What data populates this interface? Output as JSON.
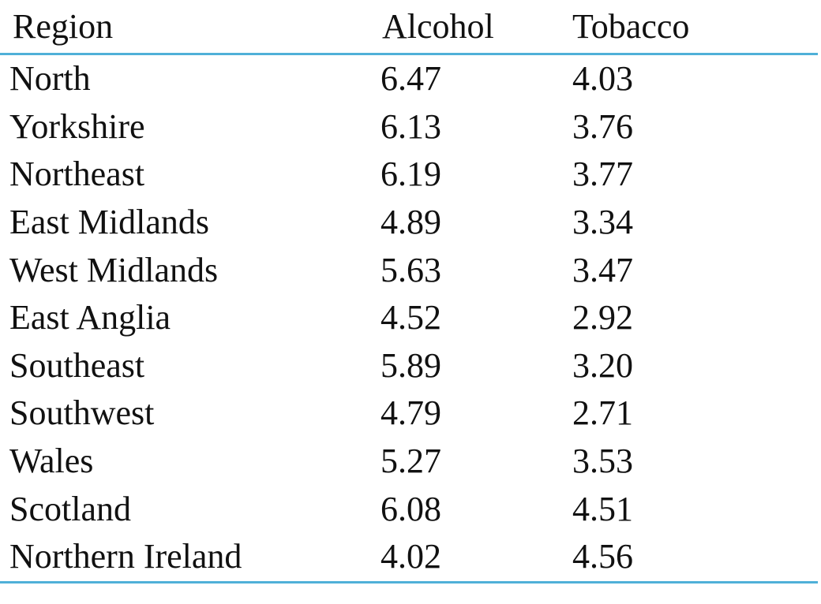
{
  "table": {
    "headers": [
      "Region",
      "Alcohol",
      "Tobacco"
    ],
    "rows": [
      [
        "North",
        "6.47",
        "4.03"
      ],
      [
        "Yorkshire",
        "6.13",
        "3.76"
      ],
      [
        "Northeast",
        "6.19",
        "3.77"
      ],
      [
        "East Midlands",
        "4.89",
        "3.34"
      ],
      [
        "West Midlands",
        "5.63",
        "3.47"
      ],
      [
        "East Anglia",
        "4.52",
        "2.92"
      ],
      [
        "Southeast",
        "5.89",
        "3.20"
      ],
      [
        "Southwest",
        "4.79",
        "2.71"
      ],
      [
        "Wales",
        "5.27",
        "3.53"
      ],
      [
        "Scotland",
        "6.08",
        "4.51"
      ],
      [
        "Northern Ireland",
        "4.02",
        "4.56"
      ]
    ],
    "rule_color": "#4fb0d8"
  }
}
